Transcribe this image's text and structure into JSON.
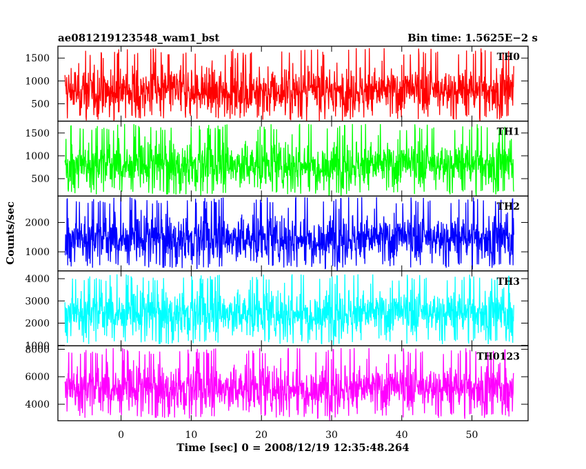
{
  "chart_data": {
    "type": "line",
    "title_left": "ae081219123548_wam1_bst",
    "title_right": "Bin time: 1.5625E−2 s",
    "xlabel": "Time [sec] 0 = 2008/12/19 12:35:48.264",
    "ylabel": "Counts/sec",
    "xlim": [
      -9,
      58
    ],
    "data_xrange": [
      -8,
      56
    ],
    "x_ticks": [
      0,
      10,
      20,
      30,
      40,
      50
    ],
    "x_tick_labels": [
      "0",
      "10",
      "20",
      "30",
      "40",
      "50"
    ],
    "panels": [
      {
        "label": "TH0",
        "color": "#ff0000",
        "ylim": [
          120,
          1760
        ],
        "y_ticks": [
          500,
          1000,
          1500
        ],
        "y_tick_labels": [
          "500",
          "1000",
          "1500"
        ],
        "mean": 780,
        "low": 150,
        "high": 1720
      },
      {
        "label": "TH1",
        "color": "#00ff00",
        "ylim": [
          120,
          1760
        ],
        "y_ticks": [
          500,
          1000,
          1500
        ],
        "y_tick_labels": [
          "500",
          "1000",
          "1500"
        ],
        "mean": 800,
        "low": 150,
        "high": 1700
      },
      {
        "label": "TH2",
        "color": "#0000ff",
        "ylim": [
          350,
          2900
        ],
        "y_ticks": [
          1000,
          2000
        ],
        "y_tick_labels": [
          "1000",
          "2000"
        ],
        "mean": 1450,
        "low": 450,
        "high": 2870
      },
      {
        "label": "TH3",
        "color": "#00ffff",
        "ylim": [
          980,
          4350
        ],
        "y_ticks": [
          1000,
          2000,
          3000,
          4000
        ],
        "y_tick_labels": [
          "1000",
          "2000",
          "3000",
          "4000"
        ],
        "mean": 2450,
        "low": 1050,
        "high": 4200
      },
      {
        "label": "TH0123",
        "color": "#ff00ff",
        "ylim": [
          2800,
          8250
        ],
        "y_ticks": [
          4000,
          6000,
          8000
        ],
        "y_tick_labels": [
          "4000",
          "6000",
          "8000"
        ],
        "mean": 5150,
        "low": 3000,
        "high": 8100
      }
    ]
  }
}
